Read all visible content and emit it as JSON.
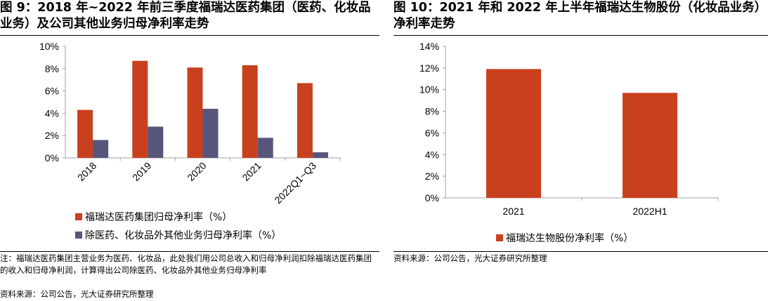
{
  "left": {
    "title": "图 9：2018 年~2022 年前三季度福瑞达医药集团（医药、化妆品业务）及公司其他业务归母净利率走势",
    "note": "注：福瑞达医药集团主营业务为医药、化妆品，此处我们用公司总收入和归母净利润扣除福瑞达医药集团的收入和归母净利润，计算得出公司除医药、化妆品外其他业务归母净利率",
    "source": "资料来源：公司公告，光大证券研究所整理"
  },
  "right": {
    "title": "图 10：2021 年和 2022 年上半年福瑞达生物股份（化妆品业务）净利率走势",
    "source": "资料来源：公司公告，光大证券研究所整理"
  },
  "colors": {
    "series1": "#C9401F",
    "series2": "#56557A",
    "axis": "#A0A0A0"
  },
  "chart_data": [
    {
      "type": "bar",
      "categories": [
        "2018",
        "2019",
        "2020",
        "2021",
        "2022Q1~Q3"
      ],
      "series": [
        {
          "name": "福瑞达医药集团归母净利率（%）",
          "values": [
            4.3,
            8.7,
            8.1,
            8.3,
            6.7
          ]
        },
        {
          "name": "除医药、化妆品外其他业务归母净利率（%）",
          "values": [
            1.6,
            2.8,
            4.4,
            1.8,
            0.5
          ]
        }
      ],
      "ylim": [
        0,
        10
      ],
      "yticks": [
        "0%",
        "2%",
        "4%",
        "6%",
        "8%",
        "10%"
      ],
      "grid": false,
      "legend_position": "bottom"
    },
    {
      "type": "bar",
      "categories": [
        "2021",
        "2022H1"
      ],
      "series": [
        {
          "name": "福瑞达生物股份净利率（%）",
          "values": [
            11.9,
            9.7
          ]
        }
      ],
      "ylim": [
        0,
        14
      ],
      "yticks": [
        "0%",
        "2%",
        "4%",
        "6%",
        "8%",
        "10%",
        "12%",
        "14%"
      ],
      "grid": false,
      "legend_position": "bottom"
    }
  ]
}
